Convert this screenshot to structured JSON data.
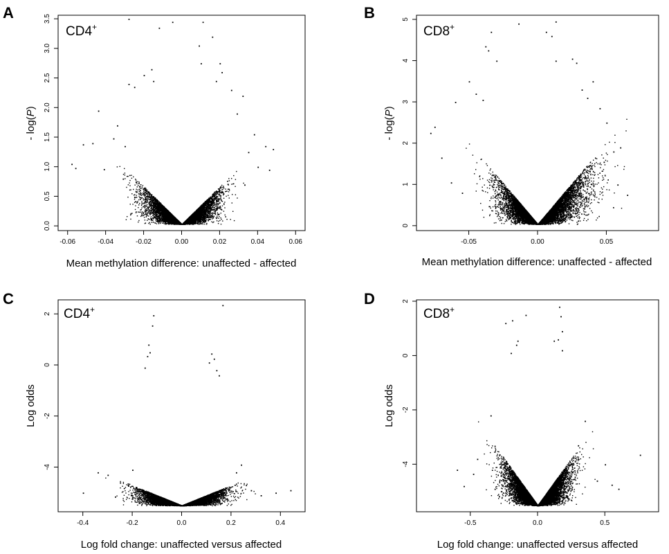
{
  "chart_data": [
    {
      "panel": "A",
      "type": "scatter",
      "cell_type": "CD4",
      "cell_sup": "+",
      "xlabel": "Mean methylation difference: unaffected - affected",
      "ylabel_prefix": "- log(",
      "ylabel_var": "P",
      "ylabel_suffix": ")",
      "xlim": [
        -0.065,
        0.065
      ],
      "ylim": [
        -0.08,
        3.56
      ],
      "xticks": [
        -0.06,
        -0.04,
        -0.02,
        0.0,
        0.02,
        0.04,
        0.06
      ],
      "xtick_labels": [
        "-0.06",
        "-0.04",
        "-0.02",
        "0.00",
        "0.02",
        "0.04",
        "0.06"
      ],
      "yticks": [
        0,
        0.5,
        1.0,
        1.5,
        2.0,
        2.5,
        3.0,
        3.5
      ],
      "ytick_labels": [
        "0.0",
        "0.5",
        "1.0",
        "1.5",
        "2.0",
        "2.5",
        "3.0",
        "3.5"
      ],
      "points": [
        [
          -0.028,
          3.5
        ],
        [
          -0.012,
          3.35
        ],
        [
          -0.005,
          3.45
        ],
        [
          0.011,
          3.45
        ],
        [
          0.009,
          3.05
        ],
        [
          0.016,
          3.2
        ],
        [
          0.01,
          2.75
        ],
        [
          0.02,
          2.75
        ],
        [
          -0.016,
          2.65
        ],
        [
          0.021,
          2.6
        ],
        [
          -0.02,
          2.55
        ],
        [
          -0.015,
          2.45
        ],
        [
          0.018,
          2.45
        ],
        [
          -0.028,
          2.4
        ],
        [
          0.032,
          2.2
        ],
        [
          -0.034,
          1.7
        ],
        [
          -0.044,
          1.95
        ],
        [
          0.038,
          1.55
        ],
        [
          -0.047,
          1.4
        ],
        [
          -0.052,
          1.38
        ],
        [
          -0.058,
          1.05
        ],
        [
          0.044,
          1.35
        ],
        [
          0.048,
          1.3
        ],
        [
          0.04,
          1.0
        ],
        [
          0.046,
          0.95
        ],
        [
          -0.041,
          0.96
        ],
        [
          -0.03,
          1.35
        ],
        [
          0.035,
          1.25
        ],
        [
          -0.036,
          1.48
        ],
        [
          0.029,
          1.9
        ],
        [
          -0.025,
          2.35
        ],
        [
          0.026,
          2.3
        ],
        [
          -0.031,
          0.8
        ],
        [
          0.033,
          0.7
        ],
        [
          -0.056,
          0.98
        ]
      ],
      "density": {
        "n": 8500,
        "spread": 0.009,
        "min_center_gap": 0.0012,
        "slope": 32,
        "ymax": 2.3,
        "floor_scale": 1.0,
        "bias": 1.0
      }
    },
    {
      "panel": "B",
      "type": "scatter",
      "cell_type": "CD8",
      "cell_sup": "+",
      "xlabel": "Mean methylation difference: unaffected - affected",
      "ylabel_prefix": "- log(",
      "ylabel_var": "P",
      "ylabel_suffix": ")",
      "xlim": [
        -0.088,
        0.088
      ],
      "ylim": [
        -0.12,
        5.1
      ],
      "xticks": [
        -0.05,
        0.0,
        0.05
      ],
      "xtick_labels": [
        "-0.05",
        "0.00",
        "0.05"
      ],
      "yticks": [
        0,
        1,
        2,
        3,
        4,
        5
      ],
      "ytick_labels": [
        "0",
        "1",
        "2",
        "3",
        "4",
        "5"
      ],
      "points": [
        [
          0.013,
          4.95
        ],
        [
          -0.014,
          4.9
        ],
        [
          0.006,
          4.7
        ],
        [
          -0.034,
          4.7
        ],
        [
          0.01,
          4.6
        ],
        [
          -0.038,
          4.35
        ],
        [
          -0.036,
          4.25
        ],
        [
          0.025,
          4.05
        ],
        [
          0.013,
          4.0
        ],
        [
          -0.03,
          4.0
        ],
        [
          0.028,
          3.95
        ],
        [
          -0.05,
          3.5
        ],
        [
          0.04,
          3.5
        ],
        [
          0.045,
          2.85
        ],
        [
          -0.045,
          3.2
        ],
        [
          -0.06,
          3.0
        ],
        [
          0.05,
          2.5
        ],
        [
          -0.078,
          2.25
        ],
        [
          0.06,
          1.9
        ],
        [
          0.055,
          1.8
        ],
        [
          -0.07,
          1.65
        ],
        [
          -0.075,
          2.4
        ],
        [
          0.048,
          1.55
        ],
        [
          -0.063,
          1.05
        ],
        [
          0.058,
          1.0
        ],
        [
          0.065,
          0.75
        ],
        [
          -0.055,
          0.8
        ],
        [
          0.036,
          3.1
        ],
        [
          -0.04,
          3.05
        ],
        [
          0.032,
          3.3
        ]
      ],
      "density": {
        "n": 9500,
        "spread": 0.013,
        "min_center_gap": 0.0015,
        "slope": 40,
        "ymax": 4.4,
        "floor_scale": 1.0,
        "bias": 1.3
      }
    },
    {
      "panel": "C",
      "type": "scatter",
      "cell_type": "CD4",
      "cell_sup": "+",
      "xlabel": "Log fold change: unaffected versus affected",
      "ylabel": "Log odds",
      "xlim": [
        -0.5,
        0.5
      ],
      "ylim": [
        -5.75,
        2.55
      ],
      "xticks": [
        -0.4,
        -0.2,
        0.0,
        0.2,
        0.4
      ],
      "xtick_labels": [
        "-0.4",
        "-0.2",
        "0.0",
        "0.2",
        "0.4"
      ],
      "yticks": [
        -4,
        -2,
        0,
        2
      ],
      "ytick_labels": [
        "-4",
        "-2",
        "0",
        "2"
      ],
      "points": [
        [
          0.165,
          2.35
        ],
        [
          -0.115,
          1.95
        ],
        [
          -0.12,
          1.55
        ],
        [
          -0.135,
          0.8
        ],
        [
          -0.13,
          0.5
        ],
        [
          -0.14,
          0.35
        ],
        [
          0.12,
          0.45
        ],
        [
          0.13,
          0.25
        ],
        [
          0.11,
          0.1
        ],
        [
          -0.15,
          -0.1
        ],
        [
          0.14,
          -0.2
        ],
        [
          0.15,
          -0.4
        ],
        [
          -0.34,
          -4.2
        ],
        [
          -0.3,
          -4.3
        ],
        [
          -0.4,
          -5.0
        ],
        [
          0.44,
          -4.9
        ],
        [
          0.38,
          -5.0
        ],
        [
          0.32,
          -5.1
        ],
        [
          0.28,
          -4.9
        ],
        [
          -0.25,
          -4.6
        ],
        [
          -0.2,
          -4.1
        ],
        [
          0.22,
          -4.2
        ],
        [
          0.26,
          -4.7
        ],
        [
          -0.27,
          -5.15
        ],
        [
          0.24,
          -3.9
        ]
      ],
      "density": {
        "n": 10500,
        "spread": 0.075,
        "min_center_gap": 0.008,
        "slope": 4.0,
        "ymax": 7.2,
        "floor_scale": 1.0,
        "bias": 1.0
      }
    },
    {
      "panel": "D",
      "type": "scatter",
      "cell_type": "CD8",
      "cell_sup": "+",
      "xlabel": "Log fold change: unaffected versus affected",
      "ylabel": "Log odds",
      "xlim": [
        -0.9,
        0.9
      ],
      "ylim": [
        -5.75,
        2.05
      ],
      "xticks": [
        -0.5,
        0.0,
        0.5
      ],
      "xtick_labels": [
        "-0.5",
        "0.0",
        "0.5"
      ],
      "yticks": [
        -4,
        -2,
        0,
        2
      ],
      "ytick_labels": [
        "-4",
        "-2",
        "0",
        "2"
      ],
      "points": [
        [
          0.16,
          1.8
        ],
        [
          -0.19,
          1.3
        ],
        [
          -0.24,
          1.2
        ],
        [
          0.17,
          1.45
        ],
        [
          -0.09,
          1.5
        ],
        [
          0.18,
          0.9
        ],
        [
          0.15,
          0.6
        ],
        [
          0.12,
          0.55
        ],
        [
          -0.15,
          0.55
        ],
        [
          -0.16,
          0.4
        ],
        [
          -0.2,
          0.1
        ],
        [
          0.18,
          0.2
        ],
        [
          0.76,
          -3.65
        ],
        [
          0.6,
          -4.9
        ],
        [
          0.55,
          -4.75
        ],
        [
          0.5,
          -4.0
        ],
        [
          0.44,
          -4.6
        ],
        [
          0.35,
          -2.4
        ],
        [
          -0.55,
          -4.8
        ],
        [
          -0.48,
          -4.35
        ],
        [
          -0.6,
          -4.2
        ],
        [
          -0.45,
          -3.8
        ],
        [
          -0.35,
          -2.2
        ],
        [
          0.3,
          -3.3
        ],
        [
          -0.32,
          -4.9
        ]
      ],
      "density": {
        "n": 11000,
        "spread": 0.11,
        "min_center_gap": 0.01,
        "slope": 7.0,
        "ymax": 7.0,
        "floor_scale": 1.0,
        "bias": 1.0
      }
    }
  ]
}
